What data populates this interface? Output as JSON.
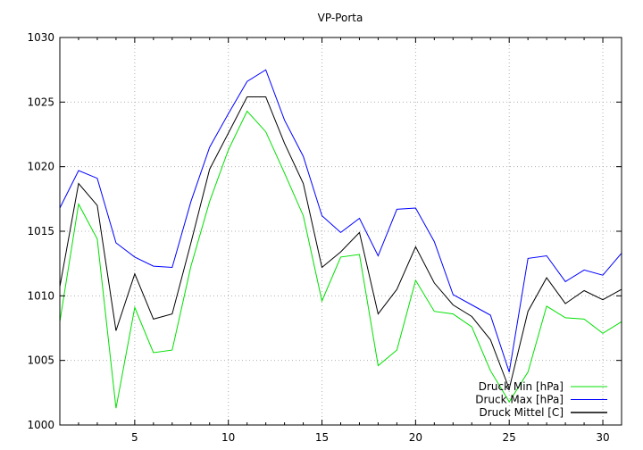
{
  "chart_data": {
    "type": "line",
    "title": "VP-Porta",
    "xlabel": "",
    "ylabel": "",
    "xlim": [
      1,
      31
    ],
    "ylim": [
      1000,
      1030
    ],
    "xticks": [
      5,
      10,
      15,
      20,
      25,
      30
    ],
    "yticks": [
      1000,
      1005,
      1010,
      1015,
      1020,
      1025,
      1030
    ],
    "grid": true,
    "legend_position": "bottom-right",
    "x": [
      1,
      2,
      3,
      4,
      5,
      6,
      7,
      8,
      9,
      10,
      11,
      12,
      13,
      14,
      15,
      16,
      17,
      18,
      19,
      20,
      21,
      22,
      23,
      24,
      25,
      26,
      27,
      28,
      29,
      30,
      31
    ],
    "series": [
      {
        "name": "Druck Min [hPa]",
        "color": "#00e000",
        "values": [
          1008.0,
          1017.1,
          1014.4,
          1001.3,
          1009.1,
          1005.6,
          1005.8,
          1012.3,
          1017.3,
          1021.3,
          1024.3,
          1022.7,
          1019.5,
          1016.2,
          1009.6,
          1013.0,
          1013.2,
          1004.6,
          1005.8,
          1011.2,
          1008.8,
          1008.6,
          1007.6,
          1004.2,
          1001.8,
          1004.1,
          1009.2,
          1008.3,
          1008.2,
          1007.1,
          1008.0
        ]
      },
      {
        "name": "Druck Max [hPa]",
        "color": "#0000ff",
        "values": [
          1016.8,
          1019.7,
          1019.1,
          1014.1,
          1013.0,
          1012.3,
          1012.2,
          1017.3,
          1021.5,
          1024.1,
          1026.6,
          1027.5,
          1023.6,
          1020.8,
          1016.2,
          1014.9,
          1016.0,
          1013.1,
          1016.7,
          1016.8,
          1014.2,
          1010.1,
          1009.3,
          1008.5,
          1004.1,
          1012.9,
          1013.1,
          1011.1,
          1012.0,
          1011.6,
          1013.3
        ]
      },
      {
        "name": "Druck Mittel [C]",
        "color": "#000000",
        "values": [
          1010.7,
          1018.7,
          1017.0,
          1007.3,
          1011.7,
          1008.2,
          1008.6,
          1014.1,
          1019.8,
          1022.6,
          1025.4,
          1025.4,
          1021.8,
          1018.7,
          1012.2,
          1013.4,
          1014.9,
          1008.6,
          1010.5,
          1013.8,
          1011.0,
          1009.3,
          1008.4,
          1006.6,
          1002.8,
          1008.8,
          1011.4,
          1009.4,
          1010.4,
          1009.7,
          1010.5
        ]
      }
    ]
  }
}
